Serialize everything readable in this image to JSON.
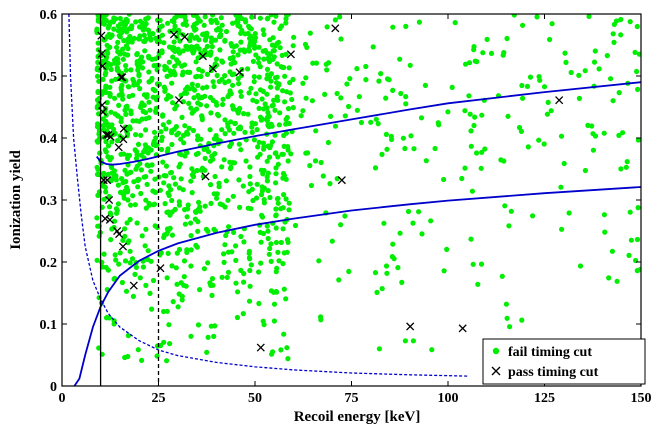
{
  "chart_data": {
    "type": "scatter",
    "xlabel": "Recoil energy [keV]",
    "ylabel": "Ionization yield",
    "xlim": [
      0,
      150
    ],
    "ylim": [
      0,
      0.6
    ],
    "x_ticks": [
      "0",
      "25",
      "50",
      "75",
      "100",
      "125",
      "150"
    ],
    "y_ticks": [
      "0",
      "0.1",
      "0.2",
      "0.3",
      "0.4",
      "0.5",
      "0.6"
    ],
    "legend_position": "bottom-right",
    "grid": false,
    "colors": {
      "fail": "#00ee00",
      "pass": "#000000",
      "band": "#0000cc"
    },
    "vertical_lines": [
      {
        "x": 10,
        "style": "solid"
      },
      {
        "x": 25,
        "style": "dashed"
      }
    ],
    "series": [
      {
        "name": "fail timing cut",
        "marker": "dot",
        "generated_points": 1500,
        "note_values": "dense cloud of points concentrated at low recoil energy, y from 0 to 0.6"
      },
      {
        "name": "pass timing cut",
        "marker": "x",
        "points": [
          [
            10.2,
            0.565
          ],
          [
            10.3,
            0.536
          ],
          [
            10.5,
            0.516
          ],
          [
            10.4,
            0.453
          ],
          [
            10.6,
            0.442
          ],
          [
            11.5,
            0.405
          ],
          [
            12.0,
            0.405
          ],
          [
            12.6,
            0.402
          ],
          [
            10.8,
            0.332
          ],
          [
            11.7,
            0.332
          ],
          [
            12.2,
            0.3
          ],
          [
            11.2,
            0.27
          ],
          [
            12.4,
            0.268
          ],
          [
            14.3,
            0.25
          ],
          [
            14.8,
            0.245
          ],
          [
            14.7,
            0.385
          ],
          [
            16.0,
            0.415
          ],
          [
            15.3,
            0.498
          ],
          [
            15.6,
            0.498
          ],
          [
            15.9,
            0.398
          ],
          [
            15.8,
            0.225
          ],
          [
            18.6,
            0.162
          ],
          [
            25.5,
            0.19
          ],
          [
            29.0,
            0.567
          ],
          [
            31.8,
            0.563
          ],
          [
            30.3,
            0.461
          ],
          [
            36.5,
            0.532
          ],
          [
            39.1,
            0.512
          ],
          [
            37.2,
            0.338
          ],
          [
            46.0,
            0.506
          ],
          [
            59.3,
            0.535
          ],
          [
            70.8,
            0.577
          ],
          [
            72.5,
            0.332
          ],
          [
            51.5,
            0.062
          ],
          [
            90.2,
            0.096
          ],
          [
            103.8,
            0.093
          ],
          [
            128.8,
            0.461
          ]
        ]
      },
      {
        "name": "nuclear recoil band upper",
        "line_style": "solid",
        "points": [
          [
            9.0,
            0.37
          ],
          [
            10.0,
            0.362
          ],
          [
            11.5,
            0.358
          ],
          [
            13.0,
            0.357
          ],
          [
            15.0,
            0.358
          ],
          [
            18.0,
            0.361
          ],
          [
            22.0,
            0.366
          ],
          [
            30.0,
            0.378
          ],
          [
            40.0,
            0.391
          ],
          [
            50.0,
            0.403
          ],
          [
            60.0,
            0.414
          ],
          [
            75.0,
            0.43
          ],
          [
            90.0,
            0.446
          ],
          [
            100.0,
            0.456
          ],
          [
            125.0,
            0.474
          ],
          [
            150.0,
            0.49
          ]
        ]
      },
      {
        "name": "nuclear recoil band lower",
        "line_style": "solid",
        "points": [
          [
            3.2,
            0.0
          ],
          [
            4.5,
            0.012
          ],
          [
            6.0,
            0.05
          ],
          [
            8.0,
            0.095
          ],
          [
            10.0,
            0.128
          ],
          [
            12.0,
            0.152
          ],
          [
            15.0,
            0.178
          ],
          [
            20.0,
            0.202
          ],
          [
            25.0,
            0.218
          ],
          [
            30.0,
            0.23
          ],
          [
            40.0,
            0.247
          ],
          [
            50.0,
            0.26
          ],
          [
            60.0,
            0.27
          ],
          [
            75.0,
            0.283
          ],
          [
            90.0,
            0.293
          ],
          [
            100.0,
            0.299
          ],
          [
            125.0,
            0.311
          ],
          [
            150.0,
            0.321
          ]
        ]
      },
      {
        "name": "ionization threshold",
        "line_style": "dashed",
        "points": [
          [
            1.8,
            0.6
          ],
          [
            2.2,
            0.5
          ],
          [
            3.0,
            0.4
          ],
          [
            4.0,
            0.335
          ],
          [
            5.0,
            0.275
          ],
          [
            6.0,
            0.225
          ],
          [
            8.0,
            0.17
          ],
          [
            10.0,
            0.14
          ],
          [
            12.0,
            0.117
          ],
          [
            15.0,
            0.095
          ],
          [
            20.0,
            0.073
          ],
          [
            25.0,
            0.058
          ],
          [
            30.0,
            0.049
          ],
          [
            40.0,
            0.038
          ],
          [
            50.0,
            0.031
          ],
          [
            60.0,
            0.026
          ],
          [
            75.0,
            0.021
          ],
          [
            90.0,
            0.018
          ],
          [
            105.0,
            0.016
          ]
        ]
      }
    ]
  }
}
